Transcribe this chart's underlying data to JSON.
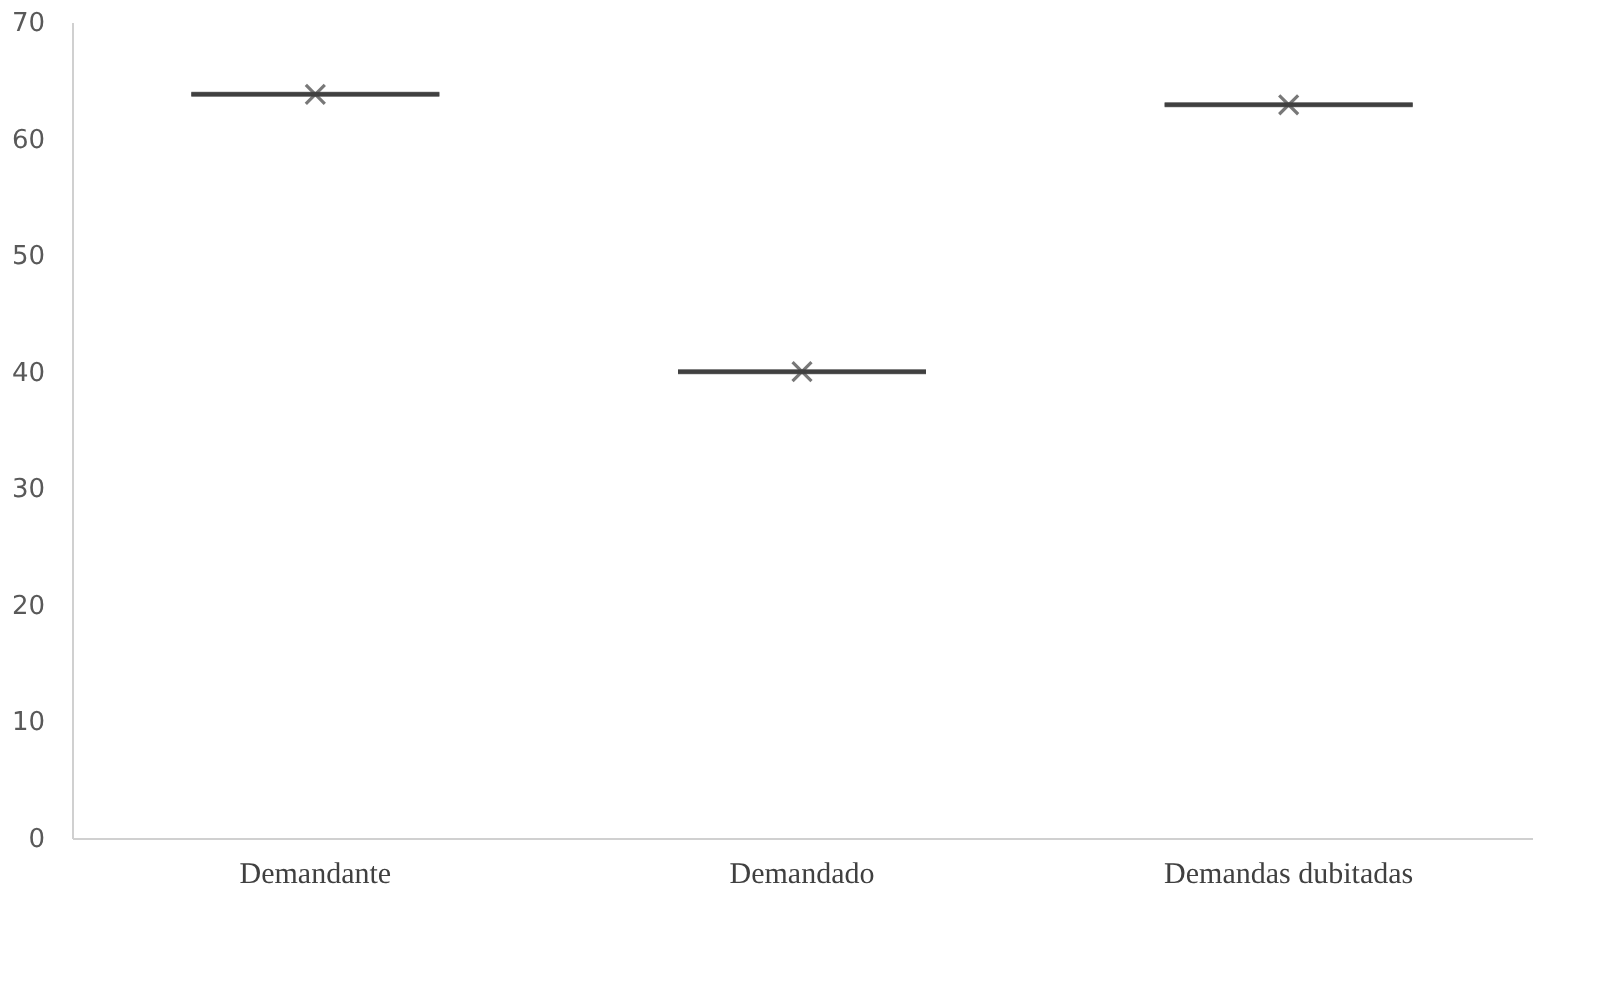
{
  "chart_data": {
    "type": "box",
    "categories": [
      "Demandante",
      "Demandado",
      "Demandas dubitadas"
    ],
    "boxes": [
      {
        "low": 63.8,
        "q1": 63.8,
        "median": 63.8,
        "q3": 63.8,
        "high": 63.8,
        "mean": 63.8
      },
      {
        "low": 40,
        "q1": 40,
        "median": 40,
        "q3": 40,
        "high": 40,
        "mean": 40
      },
      {
        "low": 62.9,
        "q1": 62.9,
        "median": 62.9,
        "q3": 62.9,
        "high": 62.9,
        "mean": 62.9
      }
    ],
    "color": "#404040",
    "ylim": [
      0,
      70
    ],
    "yticks": [
      0,
      10,
      20,
      30,
      40,
      50,
      60,
      70
    ],
    "grid": false
  }
}
